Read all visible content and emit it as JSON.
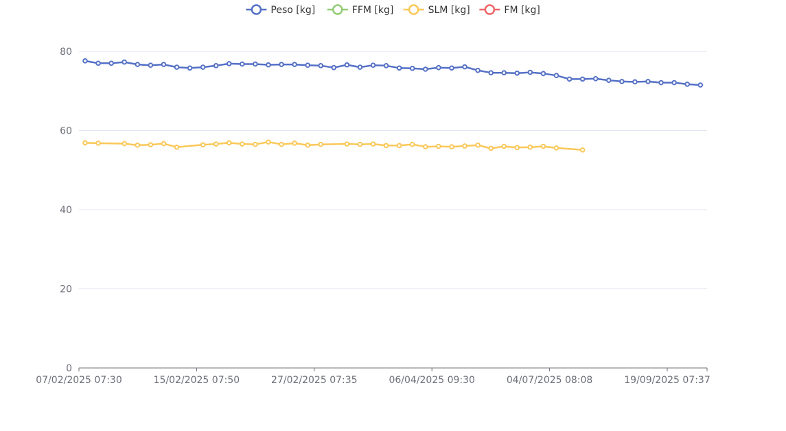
{
  "chart_data": {
    "type": "line",
    "title": "",
    "xlabel": "",
    "ylabel": "",
    "ylim": [
      0,
      80
    ],
    "yticks": [
      0,
      20,
      40,
      60,
      80
    ],
    "grid": true,
    "legend_position": "top-center",
    "x_tick_labels": [
      "07/02/2025 07:30",
      "15/02/2025 07:50",
      "27/02/2025 07:35",
      "06/04/2025 09:30",
      "04/07/2025 08:08",
      "19/09/2025 07:37"
    ],
    "x_tick_positions": [
      0,
      9,
      18,
      27,
      36,
      45
    ],
    "point_count": 48,
    "series": [
      {
        "name": "Peso [kg]",
        "color": "#5470c6",
        "values": [
          77.6,
          77.0,
          77.0,
          77.3,
          76.7,
          76.5,
          76.7,
          76.0,
          75.8,
          76.0,
          76.4,
          76.9,
          76.8,
          76.8,
          76.6,
          76.7,
          76.7,
          76.5,
          76.4,
          75.9,
          76.6,
          76.0,
          76.5,
          76.4,
          75.8,
          75.7,
          75.5,
          75.9,
          75.8,
          76.1,
          75.2,
          74.6,
          74.6,
          74.5,
          74.7,
          74.4,
          73.9,
          73.0,
          73.0,
          73.1,
          72.7,
          72.4,
          72.3,
          72.4,
          72.1,
          72.1,
          71.7,
          71.5
        ]
      },
      {
        "name": "FFM [kg]",
        "color": "#91cc75",
        "values": []
      },
      {
        "name": "SLM [kg]",
        "color": "#fac858",
        "values": [
          56.9,
          56.8,
          null,
          56.7,
          56.3,
          56.4,
          56.7,
          55.8,
          null,
          56.4,
          56.6,
          56.9,
          56.6,
          56.5,
          57.1,
          56.5,
          56.8,
          56.3,
          56.5,
          null,
          56.6,
          56.5,
          56.6,
          56.2,
          56.2,
          56.5,
          55.9,
          56.0,
          55.9,
          56.1,
          56.3,
          55.5,
          56.0,
          55.7,
          55.8,
          56.0,
          55.6,
          null,
          55.1
        ]
      },
      {
        "name": "FM [kg]",
        "color": "#ee6666",
        "values": []
      }
    ]
  }
}
